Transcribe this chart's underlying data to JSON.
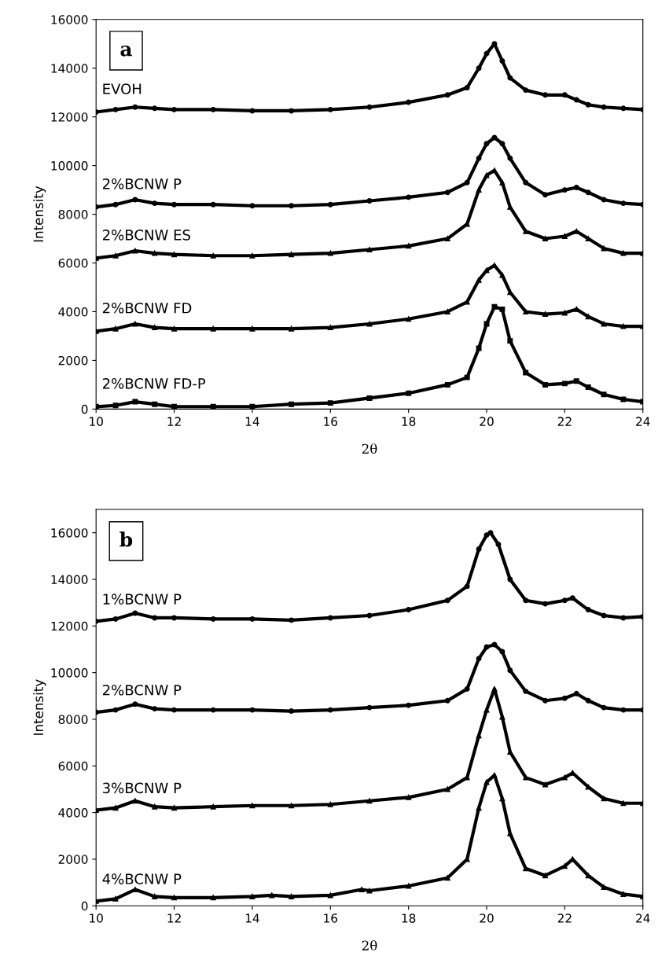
{
  "chart_data": [
    {
      "type": "line",
      "title": "a",
      "xlabel": "2θ",
      "ylabel": "Intensity",
      "xlim": [
        10,
        24
      ],
      "xticks": [
        10,
        12,
        14,
        16,
        18,
        20,
        22,
        24
      ],
      "ylim": [
        0,
        16000
      ],
      "yticks": [
        0,
        2000,
        4000,
        6000,
        8000,
        10000,
        12000,
        14000,
        16000
      ],
      "grid": false,
      "legend": false,
      "x": [
        10,
        10.5,
        11,
        11.5,
        12,
        13,
        14,
        15,
        16,
        17,
        18,
        19,
        19.5,
        19.8,
        20,
        20.2,
        20.4,
        20.6,
        21,
        21.5,
        22,
        22.3,
        22.6,
        23,
        23.5,
        24
      ],
      "series": [
        {
          "name": "EVOH",
          "color": "#000000",
          "marker": "circle",
          "values": [
            12200,
            12300,
            12400,
            12350,
            12300,
            12300,
            12250,
            12250,
            12300,
            12400,
            12600,
            12900,
            13200,
            14000,
            14600,
            15000,
            14300,
            13600,
            13100,
            12900,
            12900,
            12700,
            12500,
            12400,
            12350,
            12300
          ]
        },
        {
          "name": "2%BCNW P",
          "color": "#000000",
          "marker": "circle",
          "values": [
            8300,
            8400,
            8600,
            8450,
            8400,
            8400,
            8350,
            8350,
            8400,
            8550,
            8700,
            8900,
            9300,
            10300,
            10900,
            11150,
            10900,
            10300,
            9300,
            8800,
            9000,
            9100,
            8900,
            8600,
            8450,
            8400
          ]
        },
        {
          "name": "2%BCNW ES",
          "color": "#000000",
          "marker": "triangle",
          "values": [
            6200,
            6300,
            6500,
            6400,
            6350,
            6300,
            6300,
            6350,
            6400,
            6550,
            6700,
            7000,
            7600,
            9000,
            9600,
            9800,
            9300,
            8300,
            7300,
            7000,
            7100,
            7300,
            7000,
            6600,
            6400,
            6400
          ]
        },
        {
          "name": "2%BCNW FD",
          "color": "#000000",
          "marker": "triangle",
          "values": [
            3200,
            3300,
            3500,
            3350,
            3300,
            3300,
            3300,
            3300,
            3350,
            3500,
            3700,
            4000,
            4400,
            5300,
            5700,
            5900,
            5500,
            4800,
            4000,
            3900,
            3950,
            4100,
            3800,
            3500,
            3400,
            3400
          ]
        },
        {
          "name": "2%BCNW FD-P",
          "color": "#000000",
          "marker": "square",
          "values": [
            100,
            150,
            300,
            200,
            100,
            100,
            100,
            200,
            250,
            450,
            650,
            1000,
            1300,
            2500,
            3500,
            4200,
            4100,
            2800,
            1500,
            1000,
            1050,
            1150,
            900,
            600,
            400,
            300
          ]
        }
      ]
    },
    {
      "type": "line",
      "title": "b",
      "xlabel": "2θ",
      "ylabel": "Intensity",
      "xlim": [
        10,
        24
      ],
      "xticks": [
        10,
        12,
        14,
        16,
        18,
        20,
        22,
        24
      ],
      "ylim": [
        0,
        17000
      ],
      "yticks": [
        0,
        2000,
        4000,
        6000,
        8000,
        10000,
        12000,
        14000,
        16000
      ],
      "grid": false,
      "legend": false,
      "series": [
        {
          "name": "1%BCNW P",
          "color": "#000000",
          "marker": "circle",
          "x": [
            10,
            10.5,
            11,
            11.5,
            12,
            13,
            14,
            15,
            16,
            17,
            18,
            19,
            19.5,
            19.8,
            20,
            20.1,
            20.3,
            20.6,
            21,
            21.5,
            22,
            22.2,
            22.6,
            23,
            23.5,
            24
          ],
          "values": [
            12200,
            12300,
            12550,
            12350,
            12350,
            12300,
            12300,
            12250,
            12350,
            12450,
            12700,
            13100,
            13700,
            15300,
            15900,
            16000,
            15500,
            14000,
            13100,
            12950,
            13100,
            13200,
            12700,
            12450,
            12350,
            12400
          ]
        },
        {
          "name": "2%BCNW P",
          "color": "#000000",
          "marker": "circle",
          "x": [
            10,
            10.5,
            11,
            11.5,
            12,
            13,
            14,
            15,
            16,
            17,
            18,
            19,
            19.5,
            19.8,
            20,
            20.2,
            20.4,
            20.6,
            21,
            21.5,
            22,
            22.3,
            22.6,
            23,
            23.5,
            24
          ],
          "values": [
            8300,
            8400,
            8650,
            8450,
            8400,
            8400,
            8400,
            8350,
            8400,
            8500,
            8600,
            8800,
            9300,
            10600,
            11100,
            11200,
            10900,
            10100,
            9200,
            8800,
            8900,
            9100,
            8800,
            8500,
            8400,
            8400
          ]
        },
        {
          "name": "3%BCNW P",
          "color": "#000000",
          "marker": "triangle",
          "x": [
            10,
            10.5,
            11,
            11.5,
            12,
            13,
            14,
            15,
            16,
            17,
            18,
            19,
            19.5,
            19.8,
            20,
            20.2,
            20.4,
            20.6,
            21,
            21.5,
            22,
            22.2,
            22.6,
            23,
            23.5,
            24
          ],
          "values": [
            4100,
            4200,
            4500,
            4250,
            4200,
            4250,
            4300,
            4300,
            4350,
            4500,
            4650,
            5000,
            5500,
            7300,
            8400,
            9300,
            8100,
            6600,
            5500,
            5200,
            5500,
            5700,
            5100,
            4600,
            4400,
            4400
          ]
        },
        {
          "name": "4%BCNW P",
          "color": "#000000",
          "marker": "triangle",
          "x": [
            10,
            10.5,
            11,
            11.5,
            12,
            13,
            14,
            14.5,
            15,
            16,
            16.8,
            17,
            18,
            19,
            19.5,
            19.8,
            20,
            20.2,
            20.4,
            20.6,
            21,
            21.5,
            22,
            22.2,
            22.6,
            23,
            23.5,
            24
          ],
          "values": [
            200,
            300,
            700,
            400,
            350,
            350,
            400,
            450,
            400,
            450,
            700,
            650,
            850,
            1200,
            2000,
            4200,
            5300,
            5600,
            4600,
            3100,
            1600,
            1300,
            1700,
            2000,
            1300,
            800,
            500,
            400
          ]
        }
      ]
    }
  ]
}
